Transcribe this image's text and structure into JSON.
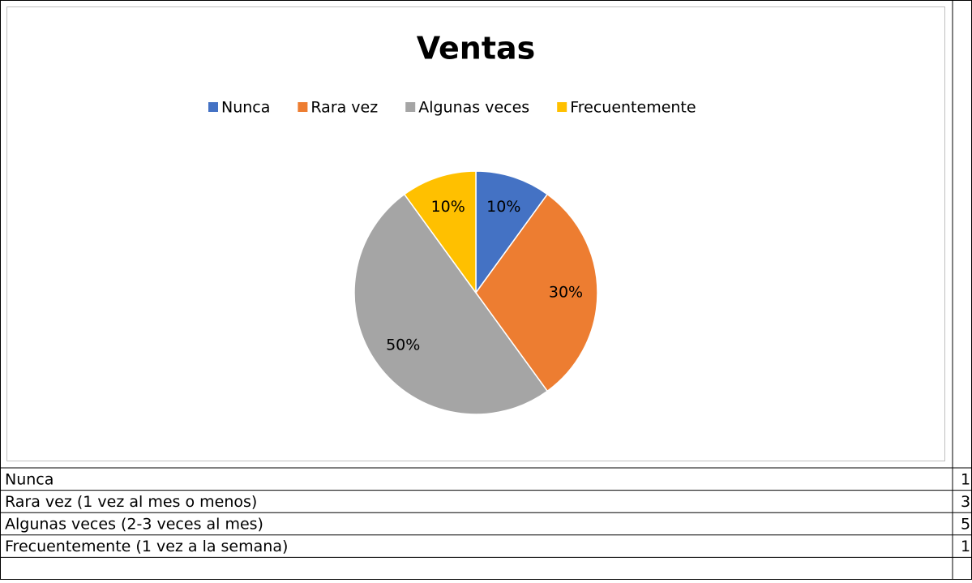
{
  "chart_data": {
    "type": "pie",
    "title": "Ventas",
    "categories": [
      "Nunca",
      "Rara vez",
      "Algunas veces",
      "Frecuentemente"
    ],
    "values": [
      10,
      30,
      50,
      10
    ],
    "value_labels": [
      "10%",
      "30%",
      "50%",
      "10%"
    ],
    "colors": [
      "#4472c4",
      "#ed7d31",
      "#a5a5a5",
      "#ffc000"
    ],
    "legend": "top"
  },
  "table": {
    "rows": [
      [
        "Nunca",
        1
      ],
      [
        "Rara vez (1 vez al mes o menos)",
        3
      ],
      [
        "Algunas veces (2-3 veces al mes)",
        5
      ],
      [
        "Frecuentemente (1 vez a la semana)",
        1
      ]
    ]
  }
}
